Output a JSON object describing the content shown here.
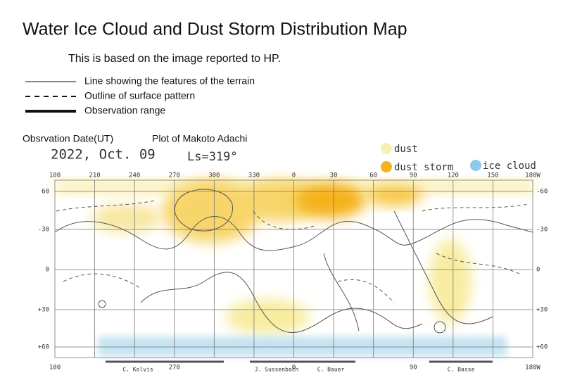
{
  "title": "Water Ice Cloud and Dust Storm Distribution Map",
  "subtitle": "This is based on the image reported to HP.",
  "legend": [
    {
      "label": "Line showing the features of the terrain"
    },
    {
      "label": "Outline of surface pattern"
    },
    {
      "label": "Observation range"
    }
  ],
  "observation": {
    "date_label": "Obsrvation Date(UT)",
    "plot_label": "Plot of Makoto Adachi",
    "date": "2022, Oct. 09",
    "ls": "Ls=319°"
  },
  "color_key": [
    {
      "label": "dust"
    },
    {
      "label": "dust storm"
    },
    {
      "label": "ice cloud"
    }
  ],
  "map": {
    "top_labels": [
      "180",
      "210",
      "240",
      "270",
      "300",
      "330",
      "0",
      "30",
      "60",
      "90",
      "120",
      "150",
      "180W"
    ],
    "left_labels": [
      "60",
      "-30",
      "0",
      "+30",
      "+60"
    ],
    "right_labels": [
      "-60",
      "-30",
      "0",
      "+30",
      "+60"
    ],
    "bottom_labels": [
      "180",
      "270",
      "0",
      "90",
      "180W"
    ],
    "observers": [
      "C. Kolvis",
      "J. Sussenbach",
      "C. Bauer",
      "C. Basse"
    ]
  }
}
